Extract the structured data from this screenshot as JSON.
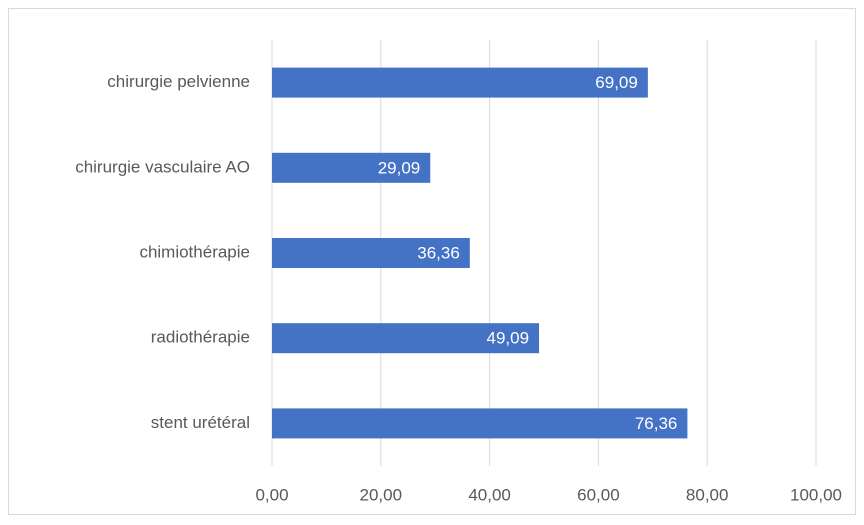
{
  "chart_data": {
    "type": "bar",
    "orientation": "horizontal",
    "categories": [
      "chirurgie pelvienne",
      "chirurgie vasculaire AO",
      "chimiothérapie",
      "radiothérapie",
      "stent urétéral"
    ],
    "values": [
      69.09,
      29.09,
      36.36,
      49.09,
      76.36
    ],
    "value_labels": [
      "69,09",
      "29,09",
      "36,36",
      "49,09",
      "76,36"
    ],
    "color": "#4472c4",
    "xlim": [
      0,
      100
    ],
    "xticks": [
      {
        "value": 0,
        "label": "0,00"
      },
      {
        "value": 20,
        "label": "20,00"
      },
      {
        "value": 40,
        "label": "40,00"
      },
      {
        "value": 60,
        "label": "60,00"
      },
      {
        "value": 80,
        "label": "80,00"
      },
      {
        "value": 100,
        "label": "100,00"
      }
    ],
    "grid": true
  }
}
